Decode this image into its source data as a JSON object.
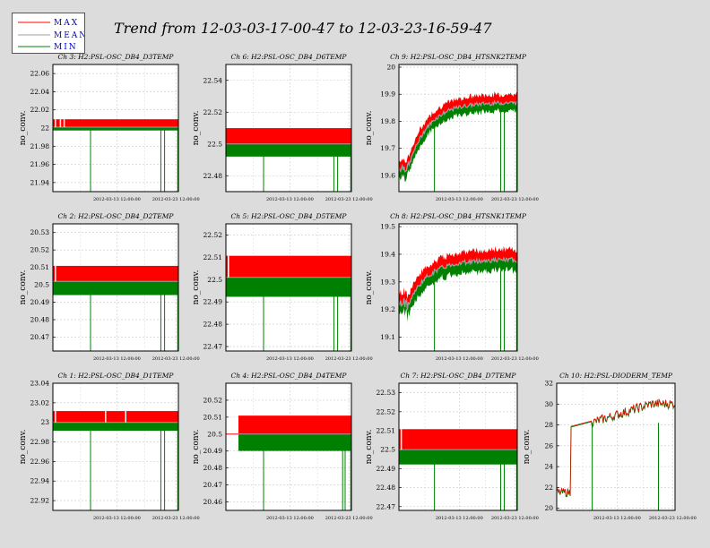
{
  "page": {
    "title": "Trend from 12-03-03-17-00-47 to 12-03-23-16-59-47"
  },
  "legend": {
    "items": [
      {
        "label": "MAX",
        "color": "#ff0000"
      },
      {
        "label": "MEAN",
        "color": "#a0a0a0"
      },
      {
        "label": "MIN",
        "color": "#008000"
      }
    ]
  },
  "colors": {
    "max": "#ff0000",
    "mean": "#a0a0a0",
    "min": "#008000",
    "label_blue": "#0000cc"
  },
  "chart_data": [
    {
      "type": "line",
      "title": "Ch 3: H2:PSL-OSC_DB4_D3TEMP",
      "ylabel": "no_conv.",
      "ylim": [
        21.93,
        22.07
      ],
      "yticks": [
        "21.94",
        "21.96",
        "21.98",
        "22",
        "22.02",
        "22.04",
        "22.06"
      ],
      "xticks": [
        "2012-03-13 12:00:00",
        "2012-03-23 12:00:00"
      ],
      "grid": true,
      "kind": "band",
      "x_range": [
        "2012-03-03 17:00:47",
        "2012-03-23 16:59:47"
      ],
      "max": 22.008,
      "mean": 22.001,
      "min": 21.999,
      "min_dips": [
        0.3,
        0.86,
        0.89,
        0.995
      ],
      "max_dips": [
        0.02,
        0.06,
        0.09
      ]
    },
    {
      "type": "line",
      "title": "Ch 6: H2:PSL-OSC_DB4_D6TEMP",
      "ylabel": "no_conv.",
      "ylim": [
        22.47,
        22.55
      ],
      "yticks": [
        "22.48",
        "22.5",
        "22.52",
        "22.54"
      ],
      "xticks": [
        "2012-03-13 12:00:00",
        "2012-03-23 12:00:00"
      ],
      "grid": true,
      "kind": "band",
      "x_range": [
        "2012-03-03 17:00:47",
        "2012-03-23 16:59:47"
      ],
      "max": 22.509,
      "mean": 22.5,
      "min": 22.493,
      "min_dips": [
        0.3,
        0.86,
        0.89,
        0.995
      ],
      "max_dips": []
    },
    {
      "type": "line",
      "title": "Ch 9: H2:PSL-OSC_DB4_HTSNK2TEMP",
      "ylabel": "no_conv.",
      "ylim": [
        19.54,
        20.01
      ],
      "yticks": [
        "19.6",
        "19.7",
        "19.8",
        "19.9",
        "20"
      ],
      "xticks": [
        "2012-03-13 12:00:00",
        "2012-03-23 12:00:00"
      ],
      "grid": true,
      "kind": "rise",
      "x_range": [
        "2012-03-03 17:00:47",
        "2012-03-23 16:59:47"
      ],
      "start_level": 19.63,
      "end_level": 19.87,
      "mean_offset": 0.015,
      "spread": 0.025,
      "min_dips": [
        0.3,
        0.86,
        0.89,
        0.995
      ]
    },
    {
      "type": "line",
      "title": "Ch 2: H2:PSL-OSC_DB4_D2TEMP",
      "ylabel": "no_conv.",
      "ylim": [
        20.462,
        20.535
      ],
      "yticks": [
        "20.47",
        "20.48",
        "20.49",
        "20.5",
        "20.51",
        "20.52",
        "20.53"
      ],
      "xticks": [
        "2012-03-13 12:00:00",
        "2012-03-23 12:00:00"
      ],
      "grid": true,
      "kind": "band",
      "x_range": [
        "2012-03-03 17:00:47",
        "2012-03-23 16:59:47"
      ],
      "max": 20.51,
      "mean": 20.502,
      "min": 20.495,
      "min_dips": [
        0.3,
        0.86,
        0.89,
        0.995
      ],
      "max_dips": [
        0.02
      ]
    },
    {
      "type": "line",
      "title": "Ch 5: H2:PSL-OSC_DB4_D5TEMP",
      "ylabel": "no_conv.",
      "ylim": [
        22.468,
        22.525
      ],
      "yticks": [
        "22.47",
        "22.48",
        "22.49",
        "22.5",
        "22.51",
        "22.52"
      ],
      "xticks": [
        "2012-03-13 12:00:00",
        "2012-03-23 12:00:00"
      ],
      "grid": true,
      "kind": "band",
      "x_range": [
        "2012-03-03 17:00:47",
        "2012-03-23 16:59:47"
      ],
      "max": 22.51,
      "mean": 22.501,
      "min": 22.493,
      "min_dips": [
        0.3,
        0.86,
        0.89,
        0.995
      ],
      "max_dips": [
        0.02
      ]
    },
    {
      "type": "line",
      "title": "Ch 8: H2:PSL-OSC_DB4_HTSNK1TEMP",
      "ylabel": "no_conv.",
      "ylim": [
        19.05,
        19.51
      ],
      "yticks": [
        "19.1",
        "19.2",
        "19.3",
        "19.4",
        "19.5"
      ],
      "xticks": [
        "2012-03-13 12:00:00",
        "2012-03-23 12:00:00"
      ],
      "grid": true,
      "kind": "rise",
      "x_range": [
        "2012-03-03 17:00:47",
        "2012-03-23 16:59:47"
      ],
      "start_level": 19.22,
      "end_level": 19.38,
      "mean_offset": 0.02,
      "spread": 0.03,
      "min_dips": [
        0.3,
        0.86,
        0.89,
        0.995
      ]
    },
    {
      "type": "line",
      "title": "Ch 1: H2:PSL-OSC_DB4_D1TEMP",
      "ylabel": "no_conv.",
      "ylim": [
        22.91,
        23.04
      ],
      "yticks": [
        "22.92",
        "22.94",
        "22.96",
        "22.98",
        "23",
        "23.02",
        "23.04"
      ],
      "xticks": [
        "2012-03-13 12:00:00",
        "2012-03-23 12:00:00"
      ],
      "grid": true,
      "kind": "band",
      "x_range": [
        "2012-03-03 17:00:47",
        "2012-03-23 16:59:47"
      ],
      "max": 23.01,
      "mean": 23.0,
      "min": 22.993,
      "min_dips": [
        0.3,
        0.86,
        0.89,
        0.995
      ],
      "max_dips": [
        0.02,
        0.42,
        0.58
      ]
    },
    {
      "type": "line",
      "title": "Ch 4: H2:PSL-OSC_DB4_D4TEMP",
      "ylabel": "no_conv.",
      "ylim": [
        20.455,
        20.53
      ],
      "yticks": [
        "20.46",
        "20.47",
        "20.48",
        "20.49",
        "20.5",
        "20.51",
        "20.52"
      ],
      "xticks": [
        "2012-03-13 12:00:00",
        "2012-03-23 12:00:00"
      ],
      "grid": true,
      "kind": "band",
      "x_range": [
        "2012-03-03 17:00:47",
        "2012-03-23 16:59:47"
      ],
      "max": 20.51,
      "mean": 20.5,
      "min": 20.491,
      "start_frac": 0.1,
      "min_dips": [
        0.3,
        0.93,
        0.95,
        0.995
      ],
      "max_dips": []
    },
    {
      "type": "line",
      "title": "Ch 7: H2:PSL-OSC_DB4_D7TEMP",
      "ylabel": "no_conv.",
      "ylim": [
        22.468,
        22.535
      ],
      "yticks": [
        "22.47",
        "22.48",
        "22.49",
        "22.5",
        "22.51",
        "22.52",
        "22.53"
      ],
      "xticks": [
        "2012-03-13 12:00:00",
        "2012-03-23 12:00:00"
      ],
      "grid": true,
      "kind": "band",
      "x_range": [
        "2012-03-03 17:00:47",
        "2012-03-23 16:59:47"
      ],
      "max": 22.51,
      "mean": 22.5,
      "min": 22.493,
      "min_dips": [
        0.3,
        0.86,
        0.89,
        0.995
      ],
      "max_dips": [
        0.02
      ]
    },
    {
      "type": "line",
      "title": "Ch 10: H2:PSL-DIODERM_TEMP",
      "ylabel": "no_conv.",
      "ylim": [
        19.8,
        32
      ],
      "yticks": [
        "20",
        "22",
        "24",
        "26",
        "28",
        "30",
        "32"
      ],
      "xticks": [
        "2012-03-13 12:00:00",
        "2012-03-23 12:00:00"
      ],
      "grid": true,
      "kind": "step",
      "x_range": [
        "2012-03-03 17:00:47",
        "2012-03-23 16:59:47"
      ],
      "start_level": 21.5,
      "mid_level": 28.2,
      "end_level": 30.0,
      "min_dips": [
        0.3,
        0.86
      ]
    }
  ]
}
